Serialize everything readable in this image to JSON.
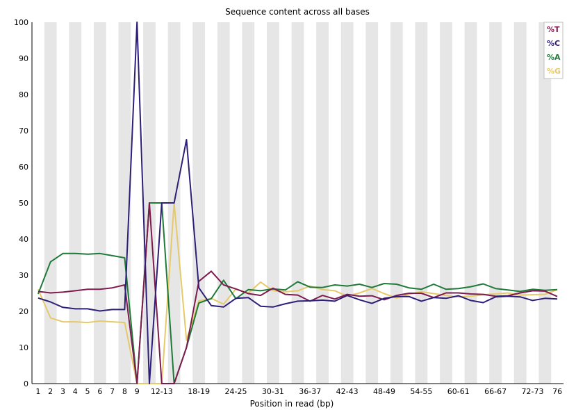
{
  "chart_data": {
    "type": "line",
    "title": "Sequence content across all bases",
    "xlabel": "Position in read (bp)",
    "ylabel": "",
    "ylim": [
      0,
      100
    ],
    "yticks": [
      0,
      10,
      20,
      30,
      40,
      50,
      60,
      70,
      80,
      90,
      100
    ],
    "legend_position": "top-right",
    "background_stripes": true,
    "categories": [
      "1",
      "2",
      "3",
      "4",
      "5",
      "6",
      "7",
      "8",
      "9",
      "10-11",
      "12-13",
      "14-15",
      "16-17",
      "18-19",
      "20-21",
      "22-23",
      "24-25",
      "26-27",
      "28-29",
      "30-31",
      "32-33",
      "34-35",
      "36-37",
      "38-39",
      "40-41",
      "42-43",
      "44-45",
      "46-47",
      "48-49",
      "50-51",
      "52-53",
      "54-55",
      "56-57",
      "58-59",
      "60-61",
      "62-63",
      "64-65",
      "66-67",
      "68-69",
      "70-71",
      "72-73",
      "74-75",
      "76"
    ],
    "tick_labels": [
      "1",
      "2",
      "3",
      "4",
      "5",
      "6",
      "7",
      "8",
      "9",
      "12-13",
      "18-19",
      "24-25",
      "30-31",
      "36-37",
      "42-43",
      "48-49",
      "54-55",
      "60-61",
      "66-67",
      "72-73",
      "76"
    ],
    "tick_indices": [
      0,
      1,
      2,
      3,
      4,
      5,
      6,
      7,
      8,
      10,
      13,
      16,
      19,
      22,
      25,
      28,
      31,
      34,
      37,
      40,
      42
    ],
    "series": [
      {
        "name": "%T",
        "color": "#7e1b4f",
        "values": [
          25.5,
          25.1,
          25.3,
          25.7,
          26.1,
          26.1,
          26.5,
          27.3,
          0,
          50,
          0,
          0,
          10,
          28.3,
          31.1,
          27.3,
          26.2,
          24.9,
          24.4,
          26.4,
          24.7,
          24.5,
          22.8,
          24.4,
          23.4,
          24.7,
          24.2,
          24.3,
          23.2,
          24.4,
          25.0,
          25.0,
          23.8,
          25.1,
          25.1,
          24.8,
          24.7,
          24.2,
          24.3,
          25.1,
          25.7,
          25.6,
          24.1
        ]
      },
      {
        "name": "%C",
        "color": "#2d1f78",
        "values": [
          23.7,
          22.6,
          21.1,
          20.7,
          20.7,
          20.1,
          20.5,
          20.5,
          100,
          0,
          50,
          50,
          67.5,
          26.5,
          21.6,
          21.2,
          23.6,
          23.8,
          21.4,
          21.2,
          22.1,
          22.8,
          22.9,
          23.1,
          22.8,
          24.4,
          23.2,
          22.2,
          23.6,
          24.1,
          24.1,
          22.8,
          23.8,
          23.6,
          24.3,
          23.0,
          22.4,
          24.0,
          24.2,
          24.0,
          23.0,
          23.6,
          23.4
        ]
      },
      {
        "name": "%A",
        "color": "#1e7a38",
        "values": [
          24.8,
          33.7,
          36.0,
          36.0,
          35.8,
          36.0,
          35.4,
          34.8,
          0,
          50,
          50,
          0,
          10,
          22.3,
          23.5,
          28.6,
          23.5,
          26.0,
          25.7,
          26.2,
          25.9,
          28.2,
          26.7,
          26.6,
          27.3,
          27.0,
          27.5,
          26.6,
          27.7,
          27.5,
          26.5,
          26.1,
          27.5,
          26.1,
          26.3,
          26.8,
          27.6,
          26.3,
          25.9,
          25.5,
          26.1,
          25.8,
          26.0
        ]
      },
      {
        "name": "%G",
        "color": "#e6c96a",
        "values": [
          26.1,
          18.2,
          17.1,
          17.1,
          16.9,
          17.3,
          17.1,
          16.9,
          0,
          0,
          0,
          50,
          12,
          22.9,
          23.6,
          22.0,
          26.2,
          25.0,
          28.1,
          25.7,
          25.4,
          25.7,
          27.0,
          26.0,
          25.7,
          24.2,
          25.1,
          26.3,
          24.9,
          23.7,
          24.7,
          25.4,
          24.9,
          24.4,
          24.0,
          24.2,
          24.6,
          24.8,
          25.1,
          24.5,
          24.6,
          24.7,
          26.0
        ]
      }
    ]
  }
}
